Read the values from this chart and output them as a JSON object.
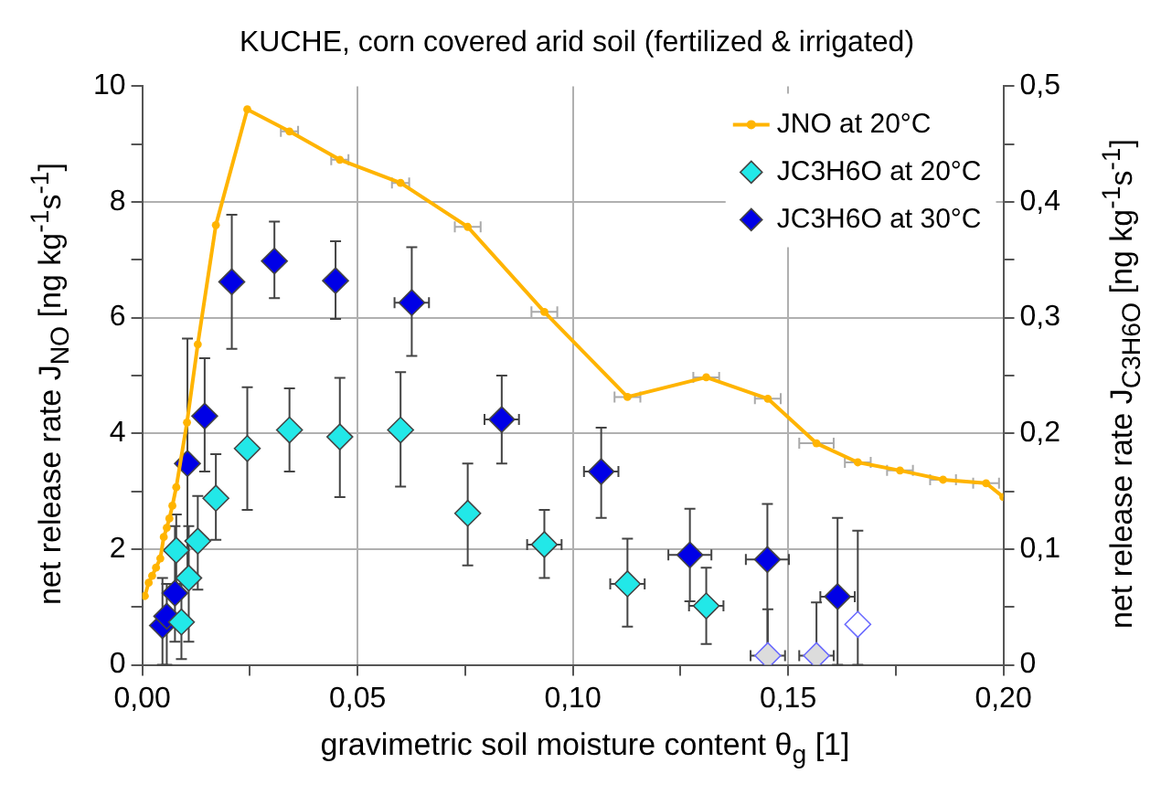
{
  "chart_data": {
    "type": "line",
    "title": "KUCHE, corn covered arid soil (fertilized & irrigated)",
    "xlabel": "gravimetric soil moisture content θ$_{g}$    [1]",
    "ylabel": "net release rate  J$_{NO}$  [ng kg$^{-1}$s$^{-1}$]",
    "y2label": "net release rate  J$_{C3H6O}$  [ng kg$^{-1}$s$^{-1}$]",
    "xlim": [
      0,
      0.2
    ],
    "xticks": [
      {
        "value": 0,
        "label": "0,00"
      },
      {
        "value": 0.025,
        "label": null
      },
      {
        "value": 0.05,
        "label": "0,05"
      },
      {
        "value": 0.075,
        "label": null
      },
      {
        "value": 0.1,
        "label": "0,10"
      },
      {
        "value": 0.125,
        "label": null
      },
      {
        "value": 0.15,
        "label": "0,15"
      },
      {
        "value": 0.175,
        "label": null
      },
      {
        "value": 0.2,
        "label": "0,20"
      }
    ],
    "ylim": [
      0,
      10
    ],
    "yticks": [
      0,
      {
        "value": 1,
        "label": null
      },
      2,
      {
        "value": 3,
        "label": null
      },
      4,
      {
        "value": 5,
        "label": null
      },
      6,
      {
        "value": 7,
        "label": null
      },
      8,
      {
        "value": 9,
        "label": null
      },
      10
    ],
    "y2lim": [
      0,
      0.5
    ],
    "y2ticks": [
      0,
      {
        "value": 0.05,
        "label": null
      },
      {
        "value": 0.1,
        "label": "0,1"
      },
      {
        "value": 0.15,
        "label": null
      },
      {
        "value": 0.2,
        "label": "0,2"
      },
      {
        "value": 0.25,
        "label": null
      },
      {
        "value": 0.3,
        "label": "0,3"
      },
      {
        "value": 0.35,
        "label": null
      },
      {
        "value": 0.4,
        "label": "0,4"
      },
      {
        "value": 0.45,
        "label": null
      },
      {
        "value": 0.5,
        "label": "0,5"
      }
    ],
    "grid": true,
    "legend": "top right",
    "series": [
      {
        "name": "JNO at 20°C",
        "marker": "circle",
        "color": "#ffb400",
        "x": [
          0.0006,
          0.0015,
          0.0023,
          0.0032,
          0.0042,
          0.005,
          0.0057,
          0.0063,
          0.007,
          0.0079,
          0.0104,
          0.0129,
          0.0171,
          0.0244,
          0.0342,
          0.0459,
          0.06,
          0.0756,
          0.0934,
          0.1127,
          0.131,
          0.1453,
          0.1566,
          0.1662,
          0.176,
          0.186,
          0.196,
          0.2
        ],
        "values": [
          1.19,
          1.42,
          1.54,
          1.68,
          1.84,
          2.21,
          2.37,
          2.53,
          2.75,
          3.07,
          4.19,
          5.54,
          7.6,
          9.6,
          9.22,
          8.73,
          8.33,
          7.57,
          6.1,
          4.63,
          4.97,
          4.6,
          3.83,
          3.5,
          3.36,
          3.2,
          3.14,
          2.9
        ],
        "xerrors": [
          null,
          null,
          null,
          null,
          null,
          null,
          null,
          null,
          null,
          null,
          null,
          null,
          null,
          null,
          0.002,
          0.002,
          0.002,
          0.003,
          0.003,
          0.003,
          0.003,
          0.003,
          0.004,
          0.003,
          0.003,
          0.003,
          0.003,
          null
        ]
      },
      {
        "name": "JC3H6O at 20°C",
        "type": "scatter",
        "marker": "diamond",
        "axis": "y2",
        "color": "#22e8e8",
        "x": [
          0.0079,
          0.0091,
          0.0108,
          0.0129,
          0.0171,
          0.0244,
          0.0342,
          0.0459,
          0.06,
          0.0756,
          0.0934,
          0.1127,
          0.131
        ],
        "values": [
          0.099,
          0.037,
          0.075,
          0.107,
          0.144,
          0.187,
          0.203,
          0.197,
          0.203,
          0.131,
          0.104,
          0.07,
          0.051
        ],
        "errors": [
          [
            0.07,
            0.13
          ],
          [
            0.005,
            0.07
          ],
          [
            0.02,
            0.12
          ],
          [
            0.065,
            0.146
          ],
          [
            0.108,
            0.182
          ],
          [
            0.134,
            0.24
          ],
          [
            0.167,
            0.239
          ],
          [
            0.145,
            0.248
          ],
          [
            0.154,
            0.253
          ],
          [
            0.086,
            0.174
          ],
          [
            0.075,
            0.134
          ],
          [
            0.033,
            0.109
          ],
          [
            0.018,
            0.084
          ]
        ],
        "xerrors": [
          null,
          null,
          null,
          null,
          null,
          null,
          null,
          null,
          null,
          null,
          0.004,
          0.004,
          0.004
        ]
      },
      {
        "name": "JC3H6O at 30°C",
        "type": "scatter",
        "marker": "diamond",
        "axis": "y2",
        "color": "#0000e6",
        "x": [
          0.0047,
          0.0057,
          0.0076,
          0.0105,
          0.0145,
          0.0208,
          0.0307,
          0.0449,
          0.0626,
          0.0835,
          0.1066,
          0.1272,
          0.1452,
          0.1615
        ],
        "values": [
          0.034,
          0.042,
          0.062,
          0.174,
          0.215,
          0.331,
          0.349,
          0.332,
          0.313,
          0.212,
          0.167,
          0.095,
          0.091,
          0.059
        ],
        "errors": [
          [
            0,
            0.075
          ],
          [
            0,
            0.07
          ],
          [
            0.02,
            0.12
          ],
          [
            0.077,
            0.282
          ],
          [
            0.167,
            0.265
          ],
          [
            0.273,
            0.389
          ],
          [
            0.317,
            0.383
          ],
          [
            0.299,
            0.366
          ],
          [
            0.267,
            0.361
          ],
          [
            0.174,
            0.25
          ],
          [
            0.127,
            0.205
          ],
          [
            0.055,
            0.135
          ],
          [
            0.005,
            0.139
          ],
          [
            0,
            0.127
          ]
        ],
        "xerrors": [
          null,
          null,
          null,
          null,
          null,
          null,
          null,
          null,
          0.004,
          0.004,
          0.004,
          0.005,
          0.005,
          0.004
        ]
      },
      {
        "type": "scatter",
        "marker": "diamond",
        "axis": "y2",
        "color": "#6a6aff",
        "colors": [
          "#dcdcdc",
          "#dcdcdc",
          "#ffffff"
        ],
        "x": [
          0.1453,
          0.1566,
          0.1662
        ],
        "values": [
          0.008,
          0.008,
          0.035
        ],
        "errors": [
          [
            0,
            0.048
          ],
          [
            0,
            0.054
          ],
          [
            0,
            0.116
          ]
        ],
        "xerrors": [
          0.004,
          0.004,
          null
        ]
      }
    ]
  }
}
